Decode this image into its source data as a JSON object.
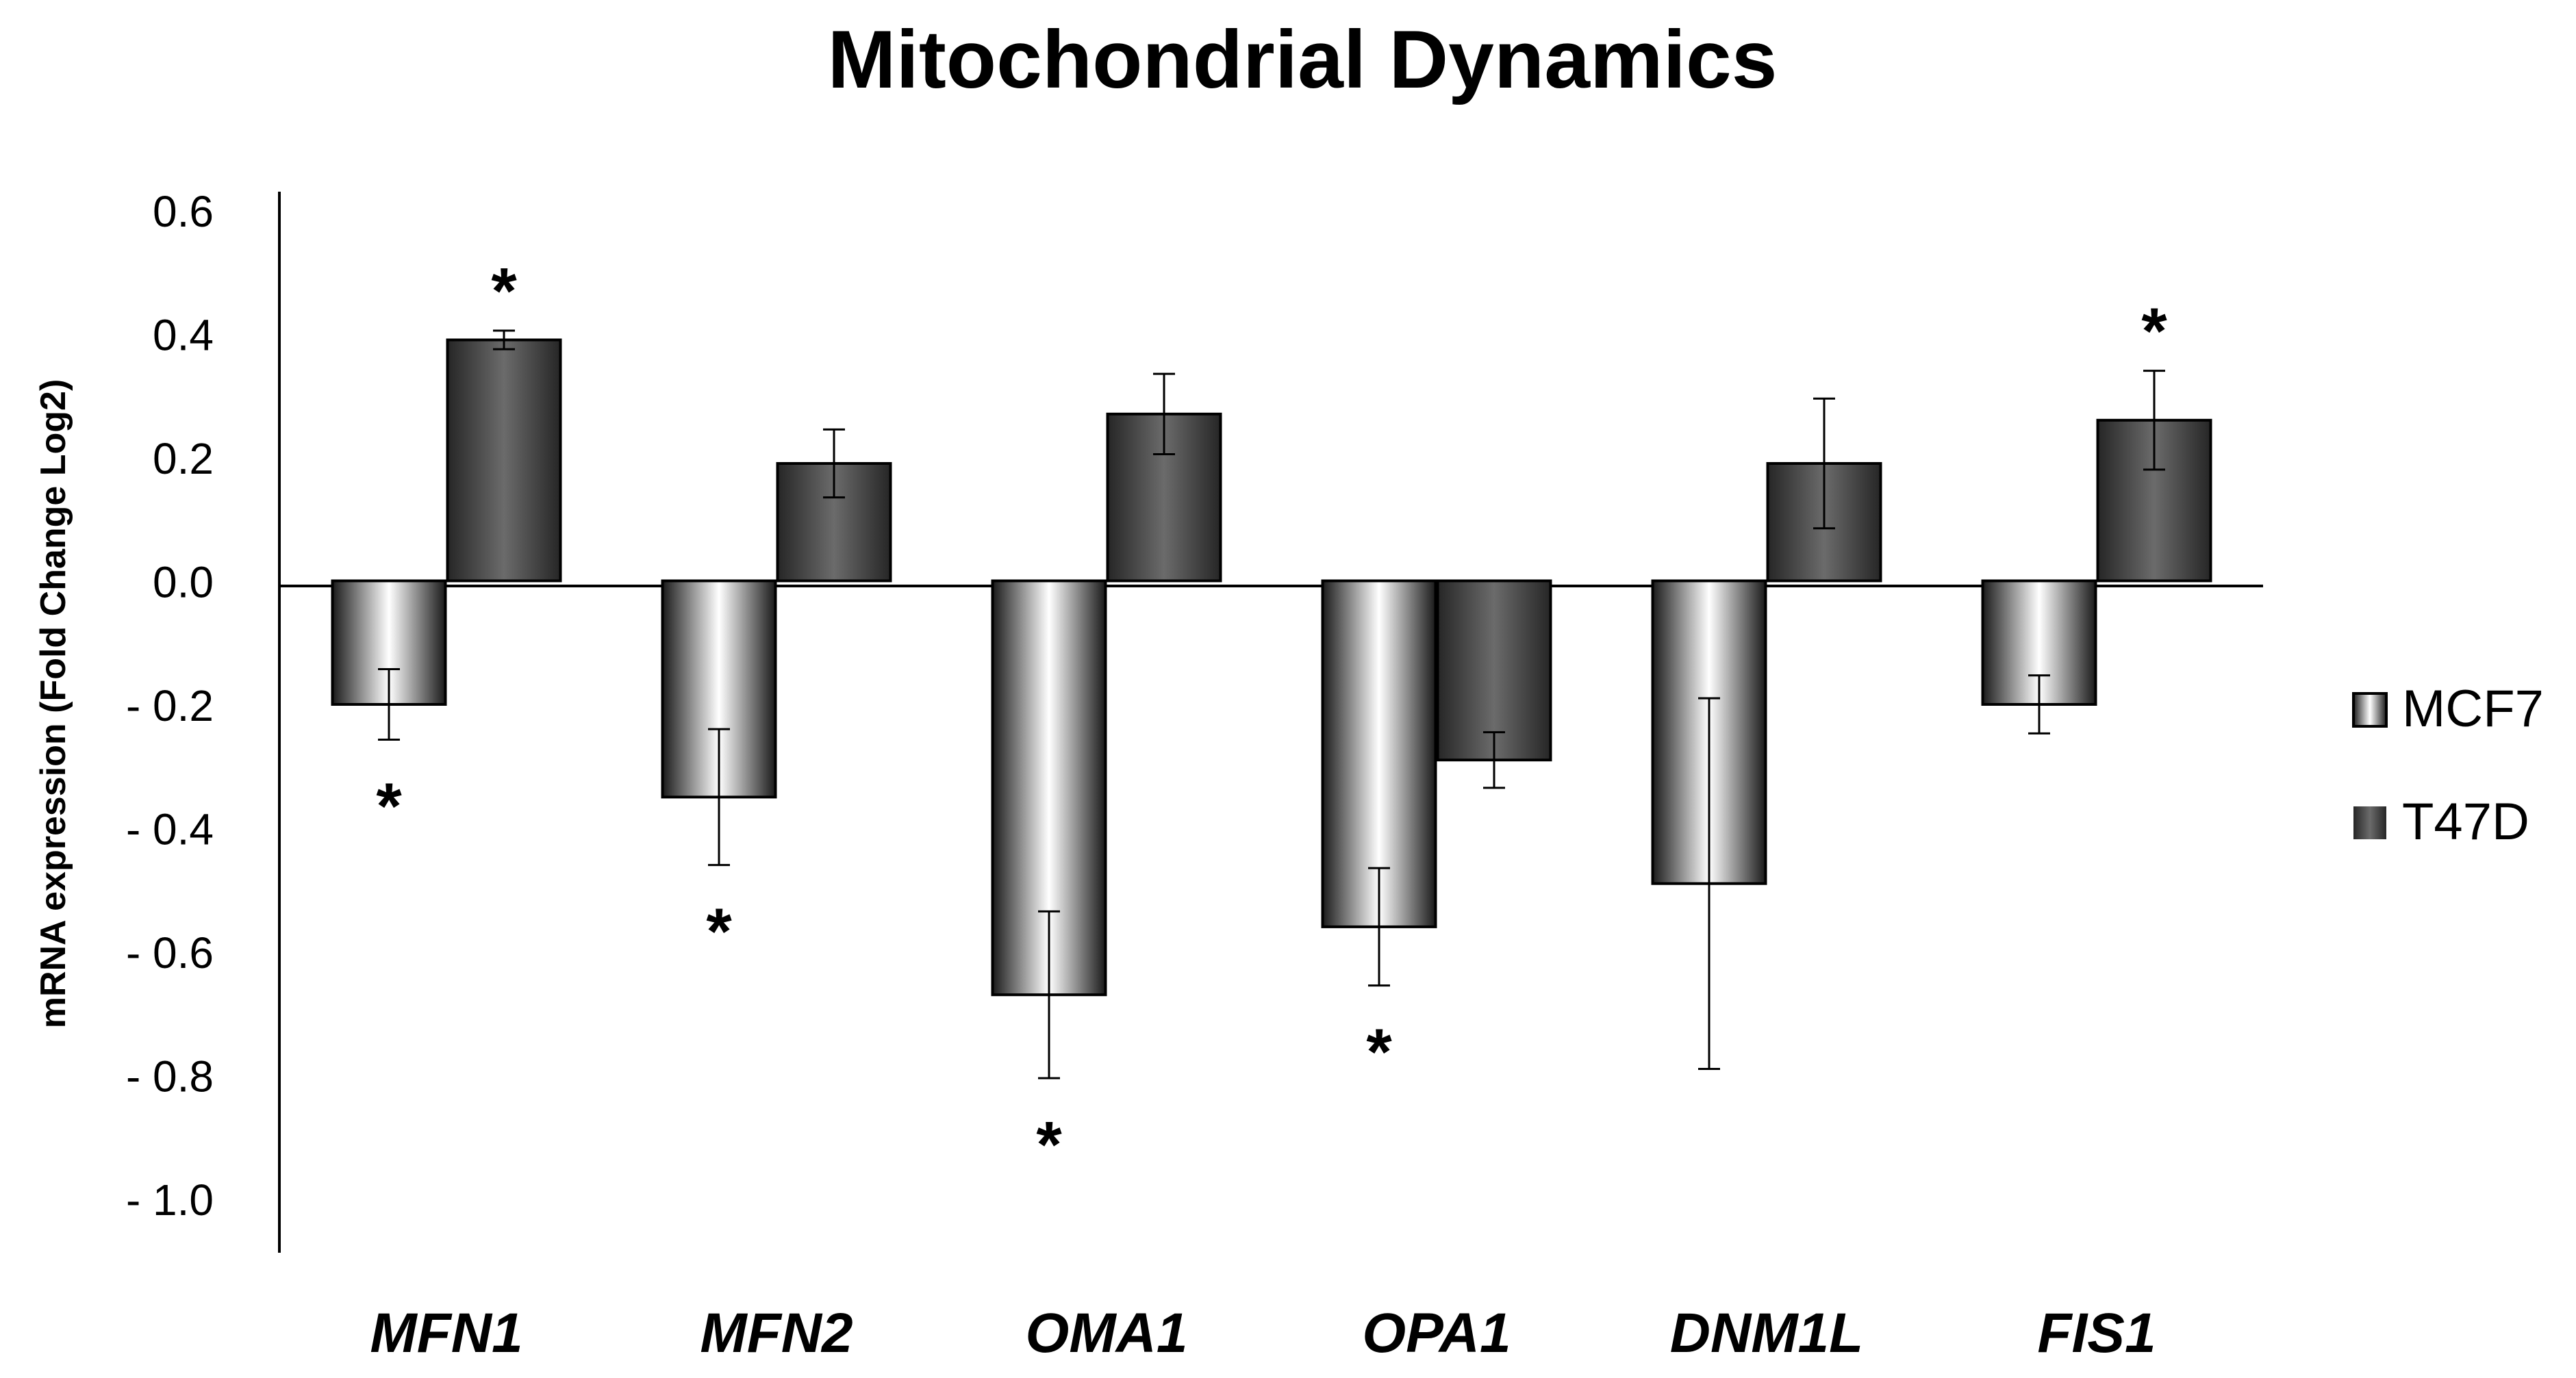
{
  "chart_data": {
    "type": "bar",
    "title": "Mitochondrial Dynamics",
    "xlabel": "",
    "ylabel": "mRNA expression (Fold Change Log2)",
    "ylim": [
      -1.0,
      0.6
    ],
    "yticks": [
      "0.6",
      "0.4",
      "0.2",
      "0.0",
      "- 0.2",
      "- 0.4",
      "- 0.6",
      "- 0.8",
      "- 1.0"
    ],
    "ytick_values": [
      0.6,
      0.4,
      0.2,
      0.0,
      -0.2,
      -0.4,
      -0.6,
      -0.8,
      -1.0
    ],
    "categories": [
      "MFN1",
      "MFN2",
      "OMA1",
      "OPA1",
      "DNM1L",
      "FIS1"
    ],
    "series": [
      {
        "name": "MCF7",
        "values": [
          -0.2,
          -0.35,
          -0.67,
          -0.56,
          -0.49,
          -0.2
        ],
        "error": [
          0.057,
          0.11,
          0.135,
          0.095,
          0.3,
          0.047
        ],
        "significant": [
          true,
          true,
          true,
          true,
          false,
          false
        ],
        "color_light": "#ffffff",
        "color_dark": "#1a1a1a"
      },
      {
        "name": "T47D",
        "values": [
          0.39,
          0.19,
          0.27,
          -0.29,
          0.19,
          0.26
        ],
        "error": [
          0.015,
          0.055,
          0.065,
          0.045,
          0.105,
          0.08
        ],
        "significant": [
          true,
          false,
          false,
          false,
          false,
          true
        ],
        "color_light": "#6b6b6b",
        "color_dark": "#262626"
      }
    ],
    "significance_marker": "*",
    "grid": false,
    "legend": "right"
  }
}
